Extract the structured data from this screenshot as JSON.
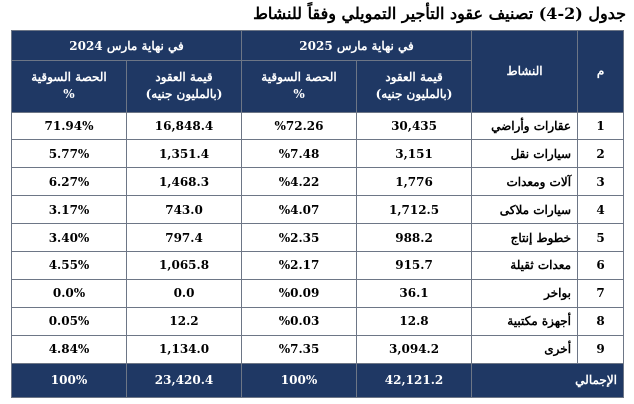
{
  "title": "جدول (2-4) تصنيف عقود التأجير التمويلي وفقاً للنشاط",
  "headers": {
    "m": "م",
    "activity": "النشاط",
    "period_2025": "في نهاية مارس 2025",
    "period_2024": "في نهاية مارس 2024",
    "contract_value_line1": "قيمة العقود",
    "contract_value_line2": "(بالمليون جنيه)",
    "market_share_line1": "الحصة السوقية",
    "market_share_line2": "%"
  },
  "rows": [
    {
      "m": "1",
      "activity": "عقارات وأراضي",
      "v2025": "30,435",
      "s2025": "%72.26",
      "v2024": "16,848.4",
      "s2024": "71.94%"
    },
    {
      "m": "2",
      "activity": "سيارات نقل",
      "v2025": "3,151",
      "s2025": "%7.48",
      "v2024": "1,351.4",
      "s2024": "5.77%"
    },
    {
      "m": "3",
      "activity": "آلات ومعدات",
      "v2025": "1,776",
      "s2025": "%4.22",
      "v2024": "1,468.3",
      "s2024": "6.27%"
    },
    {
      "m": "4",
      "activity": "سيارات ملاكى",
      "v2025": "1,712.5",
      "s2025": "%4.07",
      "v2024": "743.0",
      "s2024": "3.17%"
    },
    {
      "m": "5",
      "activity": "خطوط إنتاج",
      "v2025": "988.2",
      "s2025": "%2.35",
      "v2024": "797.4",
      "s2024": "3.40%"
    },
    {
      "m": "6",
      "activity": "معدات ثقيلة",
      "v2025": "915.7",
      "s2025": "%2.17",
      "v2024": "1,065.8",
      "s2024": "4.55%"
    },
    {
      "m": "7",
      "activity": "بواخر",
      "v2025": "36.1",
      "s2025": "%0.09",
      "v2024": "0.0",
      "s2024": "0.0%"
    },
    {
      "m": "8",
      "activity": "أجهزة مكتبية",
      "v2025": "12.8",
      "s2025": "%0.03",
      "v2024": "12.2",
      "s2024": "0.05%"
    },
    {
      "m": "9",
      "activity": "أخرى",
      "v2025": "3,094.2",
      "s2025": "%7.35",
      "v2024": "1,134.0",
      "s2024": "4.84%"
    }
  ],
  "total": {
    "label": "الإجمالي",
    "v2025": "42,121.2",
    "s2025": "100%",
    "v2024": "23,420.4",
    "s2024": "100%"
  },
  "colors": {
    "header_bg": "#1f3864",
    "header_text": "#ffffff",
    "border": "#6d7686"
  }
}
